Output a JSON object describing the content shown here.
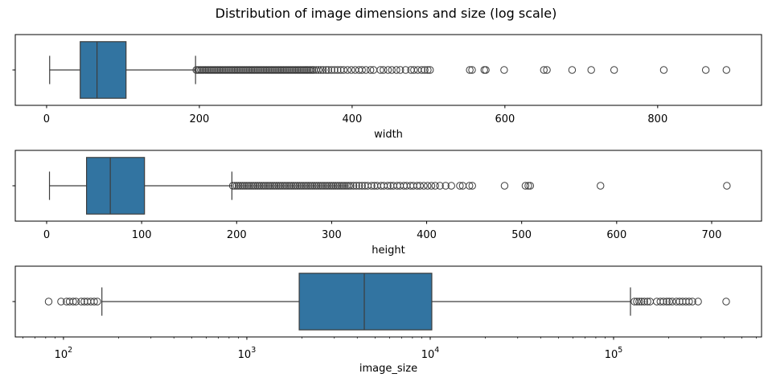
{
  "title": "Distribution of image dimensions and size (log scale)",
  "colors": {
    "background": "#ffffff",
    "box_fill": "#3274a1",
    "box_line": "#3d3d3d",
    "outlier_edge": "#3d3d3d",
    "axes": "#000000",
    "text": "#000000"
  },
  "chart_data": [
    {
      "type": "box",
      "orientation": "horizontal",
      "xlabel": "width",
      "xscale": "linear",
      "xlim": [
        -41,
        936
      ],
      "grid": false,
      "xticks": [
        {
          "value": 0,
          "label": "0"
        },
        {
          "value": 200,
          "label": "200"
        },
        {
          "value": 400,
          "label": "400"
        },
        {
          "value": 600,
          "label": "600"
        },
        {
          "value": 800,
          "label": "800"
        }
      ],
      "box": {
        "whisker_low": 4,
        "q1": 44,
        "median": 66,
        "q3": 104,
        "whisker_high": 195
      },
      "outliers": [
        196,
        198,
        200,
        202,
        204,
        206,
        208,
        210,
        212,
        214,
        216,
        218,
        220,
        222,
        224,
        226,
        228,
        230,
        232,
        234,
        236,
        238,
        240,
        242,
        244,
        246,
        248,
        250,
        252,
        254,
        256,
        258,
        260,
        262,
        264,
        266,
        268,
        270,
        272,
        274,
        276,
        278,
        280,
        282,
        284,
        286,
        288,
        290,
        292,
        294,
        296,
        298,
        300,
        302,
        304,
        306,
        308,
        310,
        312,
        314,
        316,
        318,
        320,
        322,
        324,
        326,
        328,
        330,
        332,
        334,
        336,
        338,
        340,
        342,
        344,
        346,
        348,
        350,
        353,
        356,
        359,
        362,
        366,
        369,
        373,
        377,
        381,
        385,
        389,
        394,
        399,
        404,
        409,
        413,
        418,
        424,
        428,
        437,
        441,
        447,
        452,
        458,
        463,
        470,
        477,
        481,
        486,
        491,
        495,
        499,
        502,
        554,
        557,
        573,
        575,
        599,
        651,
        655,
        688,
        713,
        743,
        808,
        863,
        890
      ]
    },
    {
      "type": "box",
      "orientation": "horizontal",
      "xlabel": "height",
      "xscale": "linear",
      "xlim": [
        -33,
        752.5
      ],
      "grid": false,
      "xticks": [
        {
          "value": 0,
          "label": "0"
        },
        {
          "value": 100,
          "label": "100"
        },
        {
          "value": 200,
          "label": "200"
        },
        {
          "value": 300,
          "label": "300"
        },
        {
          "value": 400,
          "label": "400"
        },
        {
          "value": 500,
          "label": "500"
        },
        {
          "value": 600,
          "label": "600"
        },
        {
          "value": 700,
          "label": "700"
        }
      ],
      "box": {
        "whisker_low": 3,
        "q1": 42,
        "median": 67,
        "q3": 103,
        "whisker_high": 195
      },
      "outliers": [
        196,
        198,
        200,
        202,
        204,
        206,
        208,
        210,
        212,
        214,
        216,
        218,
        220,
        222,
        224,
        226,
        228,
        230,
        232,
        234,
        236,
        238,
        240,
        242,
        244,
        246,
        248,
        250,
        252,
        254,
        256,
        258,
        260,
        262,
        264,
        266,
        268,
        270,
        272,
        274,
        276,
        278,
        280,
        282,
        284,
        286,
        288,
        290,
        292,
        294,
        296,
        298,
        300,
        302,
        304,
        306,
        308,
        310,
        312,
        314,
        316,
        318,
        320,
        323,
        326,
        329,
        332,
        335,
        338,
        342,
        345,
        348,
        352,
        355,
        359,
        362,
        365,
        369,
        372,
        376,
        379,
        383,
        386,
        390,
        393,
        397,
        401,
        405,
        409,
        414,
        420,
        426,
        435,
        438,
        445,
        448,
        482,
        504,
        507,
        509,
        583,
        716
      ]
    },
    {
      "type": "box",
      "orientation": "horizontal",
      "xlabel": "image_size",
      "xscale": "log",
      "xlim": [
        54.6,
        641000
      ],
      "grid": false,
      "xticks": [
        {
          "value": 100,
          "base": "10",
          "exp": "2"
        },
        {
          "value": 1000,
          "base": "10",
          "exp": "3"
        },
        {
          "value": 10000,
          "base": "10",
          "exp": "4"
        },
        {
          "value": 100000,
          "base": "10",
          "exp": "5"
        }
      ],
      "box": {
        "whisker_low": 162,
        "q1": 1930,
        "median": 4370,
        "q3": 10200,
        "whisker_high": 123600
      },
      "outliers": [
        83,
        97,
        104,
        108,
        113,
        117,
        125,
        130,
        135,
        141,
        147,
        153,
        130000,
        134000,
        138000,
        142000,
        147000,
        153000,
        158000,
        172000,
        180000,
        187000,
        195000,
        201000,
        209000,
        220000,
        229000,
        238000,
        248000,
        258000,
        269000,
        289000,
        411000
      ]
    }
  ]
}
